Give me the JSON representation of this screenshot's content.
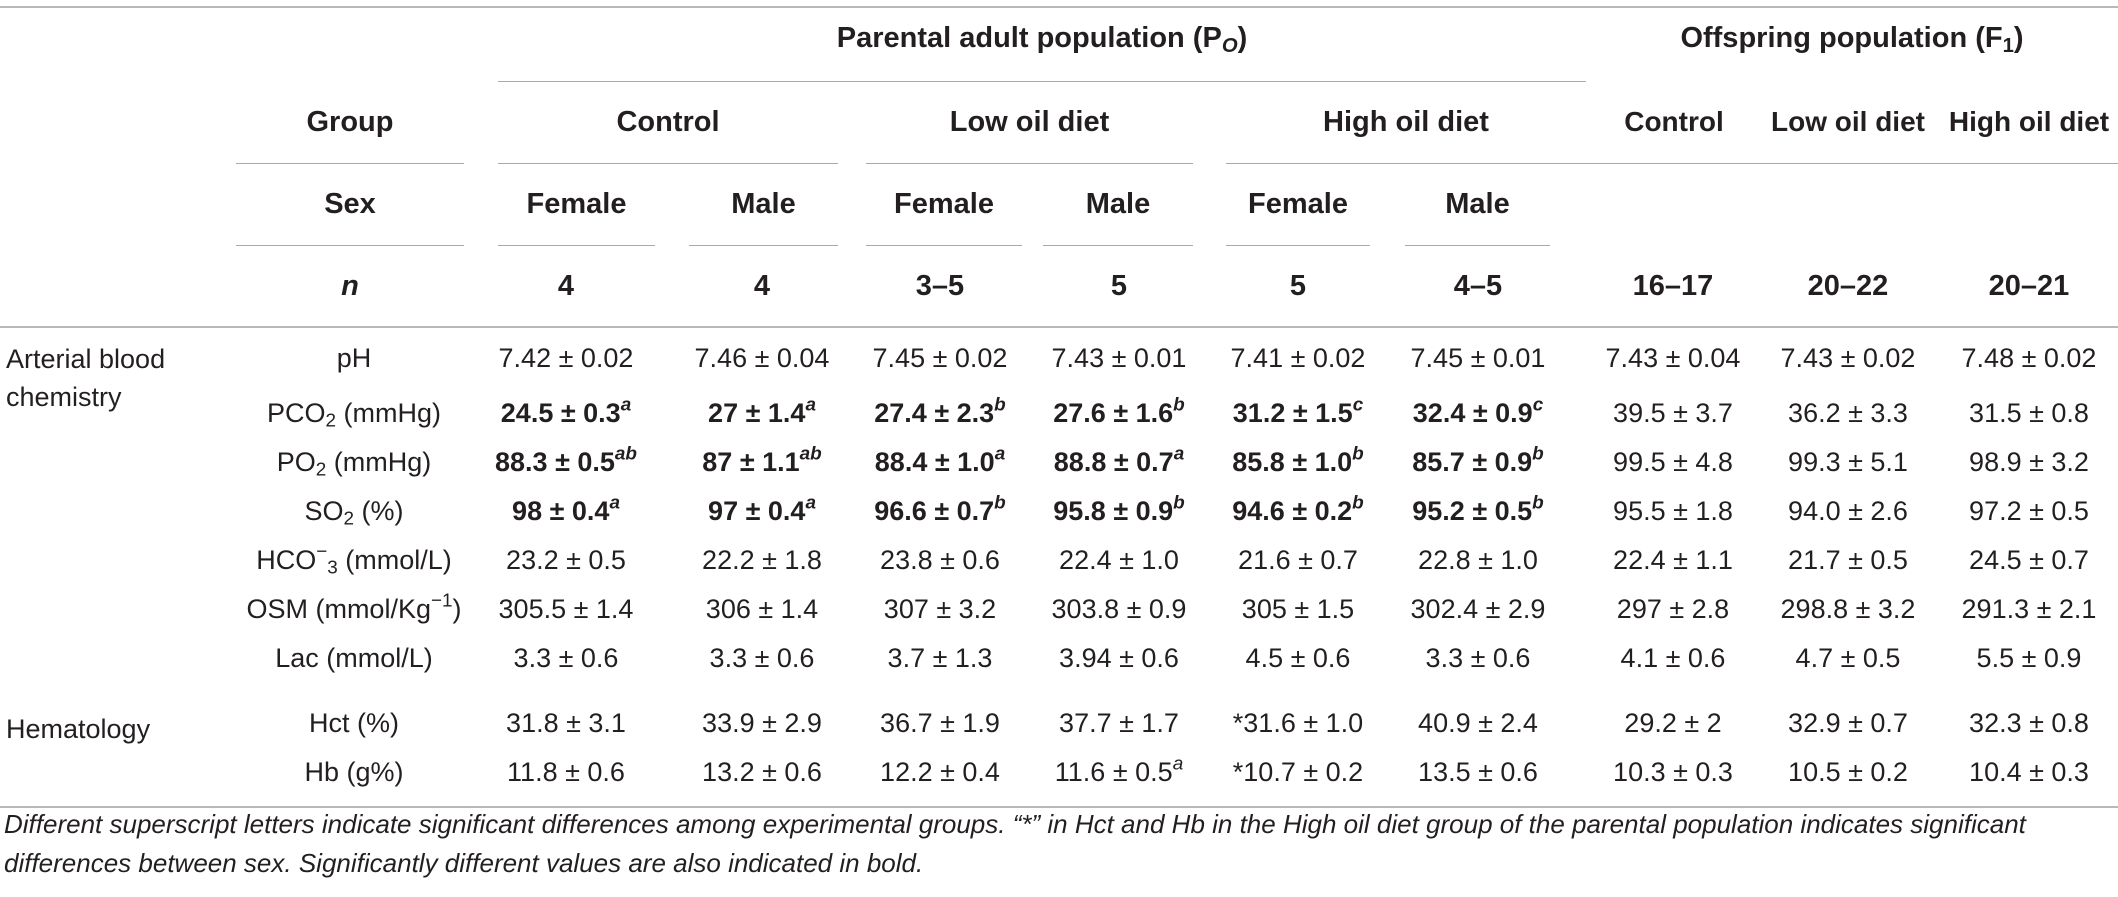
{
  "header": {
    "parental_title_prefix": "Parental adult population (P",
    "parental_title_sub": "O",
    "parental_title_suffix": ")",
    "offspring_title_prefix": "Offspring population (F",
    "offspring_title_sub": "1",
    "offspring_title_suffix": ")",
    "group_label": "Group",
    "sex_label": "Sex",
    "n_label": "n",
    "parental_groups": [
      "Control",
      "Low oil diet",
      "High oil diet"
    ],
    "offspring_groups": [
      "Control",
      "Low oil diet",
      "High oil diet"
    ],
    "sexes": [
      "Female",
      "Male",
      "Female",
      "Male",
      "Female",
      "Male"
    ],
    "n_values": [
      "4",
      "4",
      "3–5",
      "5",
      "5",
      "4–5",
      "16–17",
      "20–22",
      "20–21"
    ]
  },
  "sections": {
    "arterial_line1": "Arterial blood",
    "arterial_line2": "chemistry",
    "hematology": "Hematology"
  },
  "rows": [
    {
      "label": "pH",
      "cells": [
        {
          "v": "7.42 ± 0.02"
        },
        {
          "v": "7.46 ± 0.04"
        },
        {
          "v": "7.45 ± 0.02"
        },
        {
          "v": "7.43 ± 0.01"
        },
        {
          "v": "7.41 ± 0.02"
        },
        {
          "v": "7.45 ± 0.01"
        },
        {
          "v": "7.43 ± 0.04"
        },
        {
          "v": "7.43 ± 0.02"
        },
        {
          "v": "7.48 ± 0.02"
        }
      ]
    },
    {
      "label_pre": "PCO",
      "label_sub": "2",
      "label_post": " (mmHg)",
      "cells": [
        {
          "v": "24.5 ± 0.3",
          "sup": "a",
          "bold": true
        },
        {
          "v": "27 ± 1.4",
          "sup": "a",
          "bold": true
        },
        {
          "v": "27.4 ± 2.3",
          "sup": "b",
          "bold": true
        },
        {
          "v": "27.6 ± 1.6",
          "sup": "b",
          "bold": true
        },
        {
          "v": "31.2 ± 1.5",
          "sup": "c",
          "bold": true
        },
        {
          "v": "32.4 ± 0.9",
          "sup": "c",
          "bold": true
        },
        {
          "v": "39.5 ± 3.7"
        },
        {
          "v": "36.2 ± 3.3"
        },
        {
          "v": "31.5 ± 0.8"
        }
      ]
    },
    {
      "label_pre": "PO",
      "label_sub": "2",
      "label_post": " (mmHg)",
      "cells": [
        {
          "v": "88.3 ± 0.5",
          "sup": "ab",
          "bold": true
        },
        {
          "v": "87 ± 1.1",
          "sup": "ab",
          "bold": true
        },
        {
          "v": "88.4 ± 1.0",
          "sup": "a",
          "bold": true
        },
        {
          "v": "88.8 ± 0.7",
          "sup": "a",
          "bold": true
        },
        {
          "v": "85.8 ± 1.0",
          "sup": "b",
          "bold": true
        },
        {
          "v": "85.7 ± 0.9",
          "sup": "b",
          "bold": true
        },
        {
          "v": "99.5 ± 4.8"
        },
        {
          "v": "99.3 ± 5.1"
        },
        {
          "v": "98.9 ± 3.2"
        }
      ]
    },
    {
      "label_pre": "SO",
      "label_sub": "2",
      "label_post": " (%)",
      "cells": [
        {
          "v": "98 ± 0.4",
          "sup": "a",
          "bold": true
        },
        {
          "v": "97 ± 0.4",
          "sup": "a",
          "bold": true
        },
        {
          "v": "96.6 ± 0.7",
          "sup": "b",
          "bold": true
        },
        {
          "v": "95.8 ± 0.9",
          "sup": "b",
          "bold": true
        },
        {
          "v": "94.6 ± 0.2",
          "sup": "b",
          "bold": true
        },
        {
          "v": "95.2 ± 0.5",
          "sup": "b",
          "bold": true
        },
        {
          "v": "95.5 ± 1.8"
        },
        {
          "v": "94.0 ± 2.6"
        },
        {
          "v": "97.2 ± 0.5"
        }
      ]
    },
    {
      "label_pre": "HCO",
      "label_sup": "−",
      "label_sub": "3",
      "label_post": " (mmol/L)",
      "cells": [
        {
          "v": "23.2 ± 0.5"
        },
        {
          "v": "22.2 ± 1.8"
        },
        {
          "v": "23.8 ± 0.6"
        },
        {
          "v": "22.4 ± 1.0"
        },
        {
          "v": "21.6 ± 0.7"
        },
        {
          "v": "22.8 ± 1.0"
        },
        {
          "v": "22.4 ± 1.1"
        },
        {
          "v": "21.7 ± 0.5"
        },
        {
          "v": "24.5 ± 0.7"
        }
      ]
    },
    {
      "label_pre": "OSM (mmol/Kg",
      "label_sup": "−1",
      "label_post": ")",
      "cells": [
        {
          "v": "305.5 ± 1.4"
        },
        {
          "v": "306 ± 1.4"
        },
        {
          "v": "307 ± 3.2"
        },
        {
          "v": "303.8 ± 0.9"
        },
        {
          "v": "305 ± 1.5"
        },
        {
          "v": "302.4 ± 2.9"
        },
        {
          "v": "297 ± 2.8"
        },
        {
          "v": "298.8 ± 3.2"
        },
        {
          "v": "291.3 ± 2.1"
        }
      ]
    },
    {
      "label": "Lac (mmol/L)",
      "cells": [
        {
          "v": "3.3 ± 0.6"
        },
        {
          "v": "3.3 ± 0.6"
        },
        {
          "v": "3.7 ± 1.3"
        },
        {
          "v": "3.94 ± 0.6"
        },
        {
          "v": "4.5 ± 0.6"
        },
        {
          "v": "3.3 ± 0.6"
        },
        {
          "v": "4.1 ± 0.6"
        },
        {
          "v": "4.7 ± 0.5"
        },
        {
          "v": "5.5 ± 0.9"
        }
      ]
    },
    {
      "label": "Hct (%)",
      "cells": [
        {
          "v": "31.8 ± 3.1"
        },
        {
          "v": "33.9 ± 2.9"
        },
        {
          "v": "36.7 ± 1.9"
        },
        {
          "v": "37.7 ± 1.7"
        },
        {
          "v": "*31.6 ± 1.0"
        },
        {
          "v": "40.9 ± 2.4"
        },
        {
          "v": "29.2 ± 2"
        },
        {
          "v": "32.9 ± 0.7"
        },
        {
          "v": "32.3 ± 0.8"
        }
      ]
    },
    {
      "label": "Hb (g%)",
      "cells": [
        {
          "v": "11.8 ± 0.6"
        },
        {
          "v": "13.2 ± 0.6"
        },
        {
          "v": "12.2 ± 0.4"
        },
        {
          "v": "11.6 ± 0.5",
          "sup": "a"
        },
        {
          "v": "*10.7 ± 0.2"
        },
        {
          "v": "13.5 ± 0.6"
        },
        {
          "v": "10.3 ± 0.3"
        },
        {
          "v": "10.5 ± 0.2"
        },
        {
          "v": "10.4 ± 0.3"
        }
      ]
    }
  ],
  "footnote": "Different superscript letters indicate significant differences among experimental groups. “*” in Hct and Hb in the High oil diet group of the parental population indicates significant differences between sex. Significantly different values are also indicated in bold."
}
